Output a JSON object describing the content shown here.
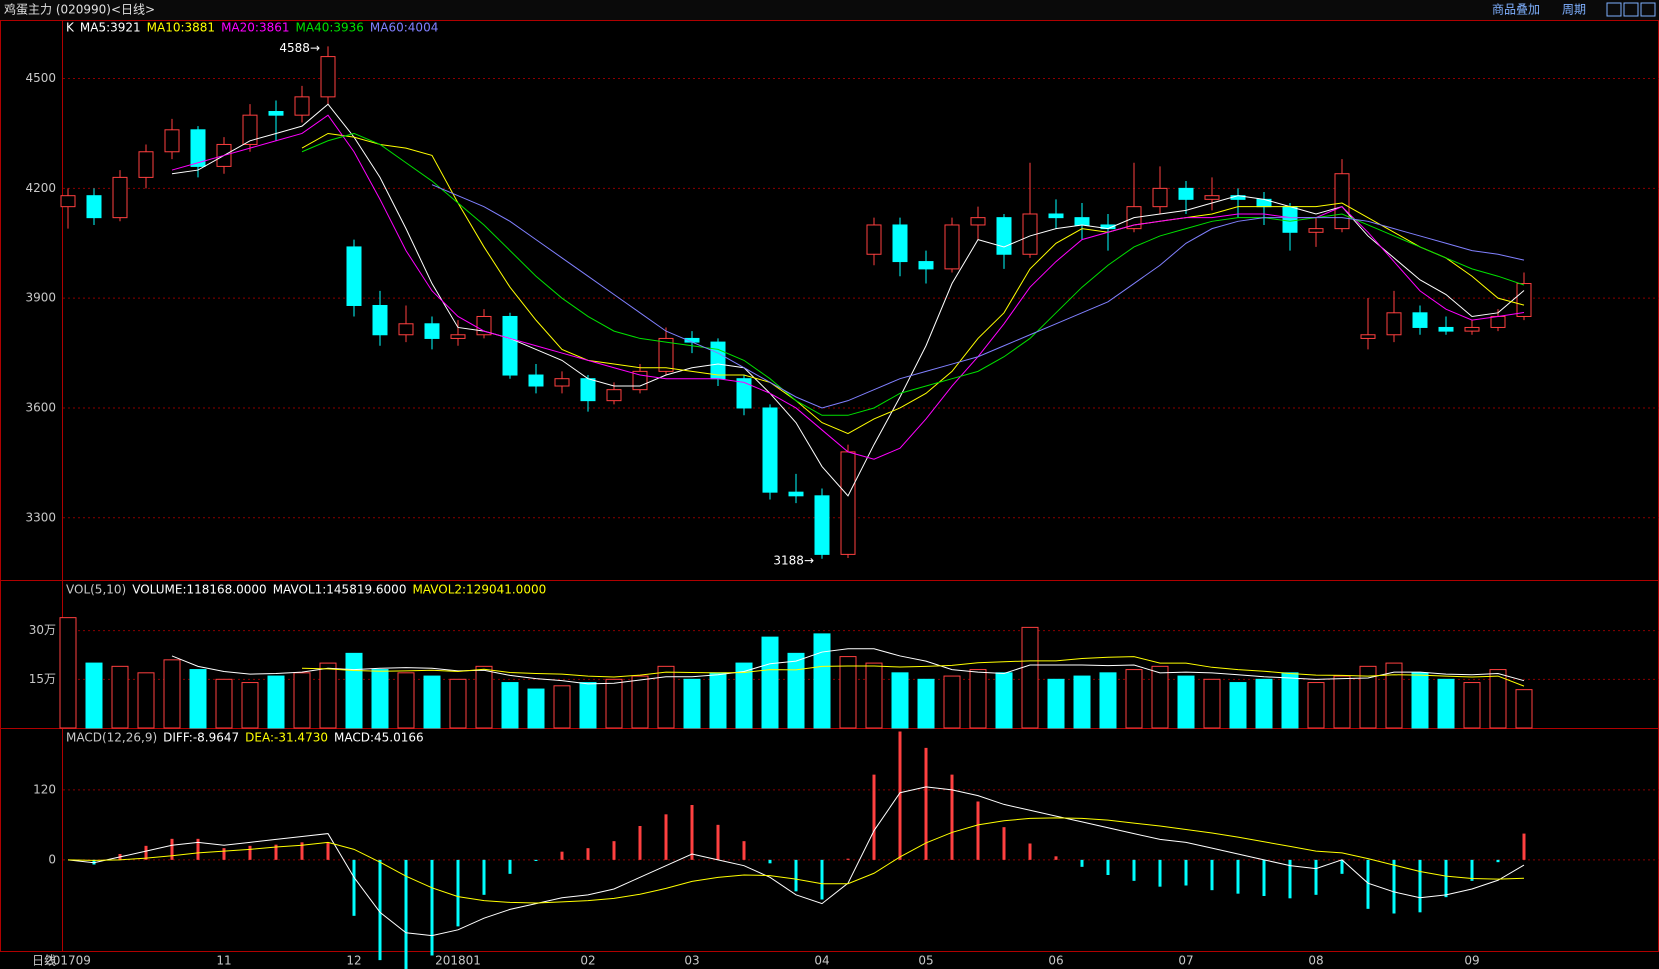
{
  "header": {
    "title": "鸡蛋主力 (020990)<日线>",
    "buttons": [
      "商品叠加",
      "周期"
    ]
  },
  "chart_data": [
    {
      "type": "candlestick",
      "label": "K",
      "xlabel": "日线",
      "categories": [
        "201709",
        null,
        null,
        null,
        null,
        null,
        "11",
        null,
        null,
        null,
        null,
        "12",
        null,
        null,
        null,
        "201801",
        null,
        null,
        null,
        null,
        "02",
        null,
        null,
        null,
        "03",
        null,
        null,
        null,
        null,
        "04",
        null,
        null,
        null,
        "05",
        null,
        null,
        null,
        null,
        "06",
        null,
        null,
        null,
        null,
        "07",
        null,
        null,
        null,
        null,
        "08",
        null,
        null,
        null,
        null,
        null,
        "09",
        null,
        null
      ],
      "open": [
        4150,
        4180,
        4120,
        4230,
        4300,
        4360,
        4260,
        4320,
        4410,
        4400,
        4450,
        4040,
        3880,
        3800,
        3830,
        3790,
        3800,
        3850,
        3690,
        3660,
        3680,
        3620,
        3650,
        3700,
        3790,
        3780,
        3680,
        3600,
        3370,
        3360,
        3200,
        4020,
        4100,
        4000,
        3980,
        4100,
        4120,
        4020,
        4130,
        4120,
        4100,
        4090,
        4150,
        4200,
        4170,
        4180,
        4170,
        4150,
        4080,
        4090,
        3790,
        3800,
        3860,
        3820,
        3810,
        3820,
        3850
      ],
      "high": [
        4200,
        4200,
        4250,
        4320,
        4390,
        4370,
        4340,
        4430,
        4440,
        4480,
        4588,
        4060,
        3920,
        3880,
        3850,
        3840,
        3870,
        3860,
        3720,
        3700,
        3690,
        3670,
        3720,
        3820,
        3810,
        3790,
        3690,
        3610,
        3420,
        3380,
        3500,
        4120,
        4120,
        4030,
        4120,
        4150,
        4130,
        4270,
        4170,
        4160,
        4130,
        4270,
        4260,
        4220,
        4230,
        4200,
        4190,
        4160,
        4120,
        4280,
        3900,
        3920,
        3880,
        3850,
        3840,
        3870,
        3970
      ],
      "low": [
        4090,
        4100,
        4110,
        4200,
        4280,
        4230,
        4240,
        4300,
        4330,
        4380,
        4430,
        3850,
        3770,
        3780,
        3760,
        3770,
        3790,
        3680,
        3640,
        3640,
        3590,
        3610,
        3640,
        3690,
        3750,
        3660,
        3580,
        3350,
        3340,
        3188,
        3190,
        3990,
        3960,
        3940,
        3970,
        4060,
        3980,
        4010,
        4090,
        4060,
        4030,
        4080,
        4130,
        4130,
        4140,
        4120,
        4100,
        4030,
        4040,
        4080,
        3760,
        3780,
        3800,
        3800,
        3800,
        3810,
        3840
      ],
      "close": [
        4180,
        4120,
        4230,
        4300,
        4360,
        4260,
        4320,
        4400,
        4400,
        4450,
        4560,
        3880,
        3800,
        3830,
        3790,
        3800,
        3850,
        3690,
        3660,
        3680,
        3620,
        3650,
        3700,
        3790,
        3780,
        3680,
        3600,
        3370,
        3360,
        3200,
        3480,
        4100,
        4000,
        3980,
        4100,
        4120,
        4020,
        4130,
        4120,
        4100,
        4090,
        4150,
        4200,
        4170,
        4180,
        4170,
        4150,
        4080,
        4090,
        4240,
        3800,
        3860,
        3820,
        3810,
        3820,
        3850,
        3940
      ],
      "up_color": "#ff4040",
      "down_color": "#00ffff",
      "high_label": "4588→",
      "low_label": "3188→",
      "series": [
        {
          "name": "MA5:3921",
          "color": "#ffffff",
          "values": [
            null,
            null,
            null,
            null,
            4240,
            4250,
            4290,
            4330,
            4350,
            4370,
            4430,
            4340,
            4230,
            4090,
            3940,
            3820,
            3810,
            3790,
            3760,
            3730,
            3680,
            3660,
            3660,
            3690,
            3710,
            3720,
            3710,
            3640,
            3560,
            3440,
            3360,
            3500,
            3630,
            3770,
            3940,
            4060,
            4040,
            4070,
            4090,
            4100,
            4090,
            4120,
            4130,
            4140,
            4160,
            4180,
            4170,
            4150,
            4130,
            4150,
            4070,
            4010,
            3950,
            3910,
            3850,
            3860,
            3921
          ]
        },
        {
          "name": "MA10:3881",
          "color": "#ffff00",
          "values": [
            null,
            null,
            null,
            null,
            null,
            null,
            null,
            null,
            null,
            4310,
            4350,
            4340,
            4320,
            4310,
            4290,
            4160,
            4040,
            3930,
            3840,
            3760,
            3730,
            3720,
            3710,
            3710,
            3700,
            3690,
            3690,
            3670,
            3620,
            3560,
            3530,
            3570,
            3600,
            3640,
            3700,
            3790,
            3860,
            3980,
            4050,
            4090,
            4080,
            4100,
            4110,
            4120,
            4130,
            4150,
            4150,
            4150,
            4150,
            4160,
            4120,
            4080,
            4040,
            4010,
            3960,
            3900,
            3881
          ]
        },
        {
          "name": "MA20:3861",
          "color": "#ff00ff",
          "values": [
            null,
            null,
            null,
            null,
            4250,
            4270,
            4290,
            4310,
            4330,
            4350,
            4400,
            4300,
            4170,
            4030,
            3920,
            3850,
            3810,
            3790,
            3770,
            3750,
            3730,
            3710,
            3690,
            3680,
            3680,
            3680,
            3670,
            3640,
            3600,
            3540,
            3480,
            3460,
            3490,
            3570,
            3660,
            3740,
            3830,
            3930,
            4000,
            4060,
            4080,
            4100,
            4110,
            4120,
            4120,
            4130,
            4130,
            4120,
            4120,
            4150,
            4080,
            4000,
            3920,
            3870,
            3840,
            3850,
            3861
          ]
        },
        {
          "name": "MA40:3936",
          "color": "#00e000",
          "values": [
            null,
            null,
            null,
            null,
            null,
            null,
            null,
            null,
            null,
            4300,
            4330,
            4350,
            4320,
            4270,
            4220,
            4160,
            4100,
            4030,
            3960,
            3900,
            3850,
            3810,
            3790,
            3780,
            3770,
            3760,
            3730,
            3680,
            3620,
            3580,
            3580,
            3600,
            3640,
            3660,
            3680,
            3700,
            3740,
            3790,
            3860,
            3930,
            3990,
            4040,
            4070,
            4090,
            4110,
            4120,
            4120,
            4110,
            4120,
            4130,
            4100,
            4070,
            4040,
            4010,
            3980,
            3960,
            3936
          ]
        },
        {
          "name": "MA60:4004",
          "color": "#8080ff",
          "values": [
            null,
            null,
            null,
            null,
            null,
            null,
            null,
            null,
            null,
            null,
            null,
            null,
            null,
            null,
            4210,
            4180,
            4150,
            4110,
            4060,
            4010,
            3960,
            3910,
            3860,
            3810,
            3780,
            3750,
            3710,
            3670,
            3630,
            3600,
            3620,
            3650,
            3680,
            3700,
            3720,
            3740,
            3770,
            3800,
            3830,
            3860,
            3890,
            3940,
            3990,
            4050,
            4090,
            4110,
            4120,
            4120,
            4120,
            4120,
            4110,
            4090,
            4070,
            4050,
            4030,
            4020,
            4004
          ]
        }
      ],
      "ylim": [
        3130,
        4660
      ],
      "yticks": [
        3300,
        3600,
        3900,
        4200,
        4500
      ],
      "grid": true,
      "grid_color": "#8a0000"
    },
    {
      "type": "bar",
      "label": "VOL(5,10)",
      "title": "VOLUME:118168.0000",
      "values": [
        340000,
        200000,
        190000,
        170000,
        210000,
        180000,
        150000,
        140000,
        160000,
        170000,
        200000,
        230000,
        180000,
        170000,
        160000,
        150000,
        190000,
        140000,
        120000,
        130000,
        140000,
        150000,
        160000,
        190000,
        150000,
        170000,
        200000,
        280000,
        230000,
        290000,
        220000,
        200000,
        170000,
        150000,
        160000,
        180000,
        170000,
        310000,
        150000,
        160000,
        170000,
        180000,
        190000,
        160000,
        150000,
        140000,
        150000,
        170000,
        140000,
        160000,
        190000,
        200000,
        170000,
        150000,
        140000,
        180000,
        118168
      ],
      "up_color": "#ff4040",
      "down_color": "#00ffff",
      "series": [
        {
          "name": "MAVOL1:145819.6000",
          "color": "#ffffff",
          "values": [
            null,
            null,
            null,
            null,
            222000,
            190000,
            174000,
            166000,
            168000,
            172000,
            184000,
            180000,
            184000,
            186000,
            184000,
            176000,
            178000,
            162000,
            152000,
            146000,
            136000,
            138000,
            148000,
            158000,
            158000,
            164000,
            174000,
            198000,
            206000,
            234000,
            244000,
            244000,
            222000,
            206000,
            180000,
            172000,
            168000,
            194000,
            194000,
            194000,
            192000,
            194000,
            170000,
            172000,
            170000,
            164000,
            158000,
            154000,
            150000,
            152000,
            154000,
            172000,
            172000,
            166000,
            164000,
            168000,
            145819.6
          ]
        },
        {
          "name": "MAVOL2:129041.0000",
          "color": "#ffff00",
          "values": [
            null,
            null,
            null,
            null,
            null,
            null,
            null,
            null,
            null,
            184000,
            182000,
            177000,
            175000,
            176000,
            178000,
            174000,
            181000,
            171000,
            168000,
            166000,
            160000,
            157000,
            163000,
            172000,
            171000,
            170000,
            171000,
            180000,
            179000,
            190000,
            191000,
            191000,
            188000,
            190000,
            193000,
            201000,
            204000,
            207000,
            207000,
            214000,
            218000,
            220000,
            200000,
            200000,
            187000,
            180000,
            175000,
            168000,
            163000,
            162000,
            160000,
            164000,
            163000,
            160000,
            157000,
            160000,
            129041
          ]
        }
      ],
      "ylim": [
        0,
        456000
      ],
      "yticks": [
        {
          "value": 150000,
          "label": "15万"
        },
        {
          "value": 300000,
          "label": "30万"
        }
      ],
      "grid": true,
      "grid_color": "#8a0000"
    },
    {
      "type": "macd",
      "label": "MACD(12,26,9)",
      "series": [
        {
          "name": "DIFF:-8.9647",
          "color": "#ffffff",
          "values": [
            0,
            -5,
            5,
            15,
            25,
            30,
            25,
            30,
            35,
            40,
            45,
            -30,
            -90,
            -125,
            -130,
            -120,
            -100,
            -85,
            -75,
            -65,
            -60,
            -50,
            -30,
            -10,
            10,
            0,
            -10,
            -30,
            -60,
            -75,
            -40,
            50,
            115,
            125,
            120,
            110,
            95,
            85,
            75,
            65,
            55,
            45,
            35,
            30,
            20,
            10,
            0,
            -10,
            -15,
            0,
            -40,
            -55,
            -65,
            -60,
            -50,
            -35,
            -8.9647
          ]
        },
        {
          "name": "DEA:-31.4730",
          "color": "#ffff00",
          "values": [
            0,
            -1,
            0,
            3,
            7,
            12,
            15,
            18,
            22,
            25,
            30,
            18,
            -4,
            -28,
            -48,
            -63,
            -70,
            -73,
            -74,
            -72,
            -70,
            -66,
            -59,
            -49,
            -37,
            -30,
            -26,
            -27,
            -33,
            -41,
            -41,
            -23,
            5,
            29,
            47,
            60,
            67,
            71,
            72,
            71,
            68,
            63,
            58,
            52,
            46,
            39,
            31,
            23,
            15,
            12,
            2,
            -9,
            -20,
            -28,
            -32,
            -33,
            -31.473
          ]
        }
      ],
      "histogram": {
        "name": "MACD:45.0166",
        "up_color": "#ff4040",
        "down_color": "#00ffff",
        "values": [
          0,
          -8,
          10,
          24,
          36,
          36,
          20,
          24,
          26,
          30,
          30,
          -96,
          -172,
          -194,
          -164,
          -114,
          -60,
          -24,
          -2,
          14,
          20,
          32,
          58,
          78,
          94,
          60,
          32,
          -6,
          -54,
          -68,
          2,
          146,
          220,
          192,
          146,
          100,
          56,
          28,
          6,
          -12,
          -26,
          -36,
          -46,
          -44,
          -52,
          -58,
          -62,
          -66,
          -60,
          -24,
          -84,
          -92,
          -90,
          -64,
          -36,
          -4,
          45.0166
        ]
      },
      "ylim": [
        -158,
        226
      ],
      "yticks": [
        0,
        120
      ],
      "grid": true,
      "grid_color": "#8a0000"
    }
  ]
}
